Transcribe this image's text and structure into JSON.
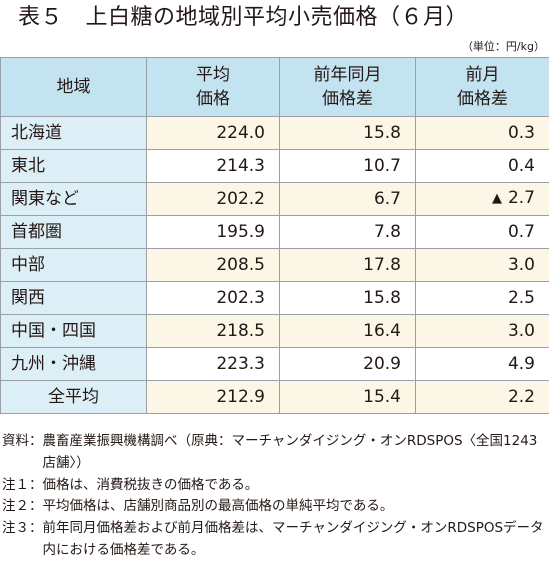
{
  "title": "表５　上白糖の地域別平均小売価格（６月）",
  "unit": "（単位：円/kg）",
  "headers": {
    "region": "地域",
    "avg": [
      "平均",
      "価格"
    ],
    "yoy": [
      "前年同月",
      "価格差"
    ],
    "mom": [
      "前月",
      "価格差"
    ]
  },
  "rows": [
    {
      "region": "北海道",
      "avg": "224.0",
      "yoy": "15.8",
      "mom": "0.3"
    },
    {
      "region": "東北",
      "avg": "214.3",
      "yoy": "10.7",
      "mom": "0.4"
    },
    {
      "region": "関東など",
      "avg": "202.2",
      "yoy": "6.7",
      "mom": "2.7",
      "mom_marker": "▲"
    },
    {
      "region": "首都圏",
      "avg": "195.9",
      "yoy": "7.8",
      "mom": "0.7"
    },
    {
      "region": "中部",
      "avg": "208.5",
      "yoy": "17.8",
      "mom": "3.0"
    },
    {
      "region": "関西",
      "avg": "202.3",
      "yoy": "15.8",
      "mom": "2.5"
    },
    {
      "region": "中国・四国",
      "avg": "218.5",
      "yoy": "16.4",
      "mom": "3.0"
    },
    {
      "region": "九州・沖縄",
      "avg": "223.3",
      "yoy": "20.9",
      "mom": "4.9"
    },
    {
      "region": "全平均",
      "avg": "212.9",
      "yoy": "15.4",
      "mom": "2.2"
    }
  ],
  "notes": [
    {
      "label": "資料：",
      "text": "農畜産業振興機構調べ（原典：マーチャンダイジング・オンRDSPOS〈全国1243店舗〉）"
    },
    {
      "label": "注１：",
      "text": "価格は、消費税抜きの価格である。"
    },
    {
      "label": "注２：",
      "text": "平均価格は、店舗別商品別の最高価格の単純平均である。"
    },
    {
      "label": "注３：",
      "text": "前年同月価格差および前月価格差は、マーチャンダイジング・オンRDSPOSデータ内における価格差である。"
    }
  ],
  "colors": {
    "header_bg": "#c4e3f0",
    "region_bg": "#ddeff6",
    "value_tint": "#fbf6e6",
    "border": "#9aa0a6",
    "text": "#231815"
  }
}
